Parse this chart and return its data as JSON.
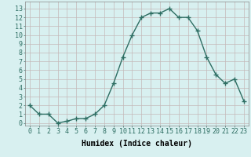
{
  "x": [
    0,
    1,
    2,
    3,
    4,
    5,
    6,
    7,
    8,
    9,
    10,
    11,
    12,
    13,
    14,
    15,
    16,
    17,
    18,
    19,
    20,
    21,
    22,
    23
  ],
  "y": [
    2.0,
    1.0,
    1.0,
    0.0,
    0.2,
    0.5,
    0.5,
    1.0,
    2.0,
    4.5,
    7.5,
    10.0,
    12.0,
    12.5,
    12.5,
    13.0,
    12.0,
    12.0,
    10.5,
    7.5,
    5.5,
    4.5,
    5.0,
    2.5
  ],
  "title": "",
  "xlabel": "Humidex (Indice chaleur)",
  "ylabel": "",
  "ylim": [
    -0.3,
    13.8
  ],
  "xlim": [
    -0.5,
    23.5
  ],
  "yticks": [
    0,
    1,
    2,
    3,
    4,
    5,
    6,
    7,
    8,
    9,
    10,
    11,
    12,
    13
  ],
  "xticks": [
    0,
    1,
    2,
    3,
    4,
    5,
    6,
    7,
    8,
    9,
    10,
    11,
    12,
    13,
    14,
    15,
    16,
    17,
    18,
    19,
    20,
    21,
    22,
    23
  ],
  "line_color": "#2e6e63",
  "bg_color": "#d8f0f0",
  "grid_color_major": "#c4b8b8",
  "grid_color_minor": "#ddd0d0",
  "marker": "+",
  "marker_size": 4,
  "line_width": 1.0,
  "xlabel_fontsize": 7,
  "tick_fontsize": 6
}
